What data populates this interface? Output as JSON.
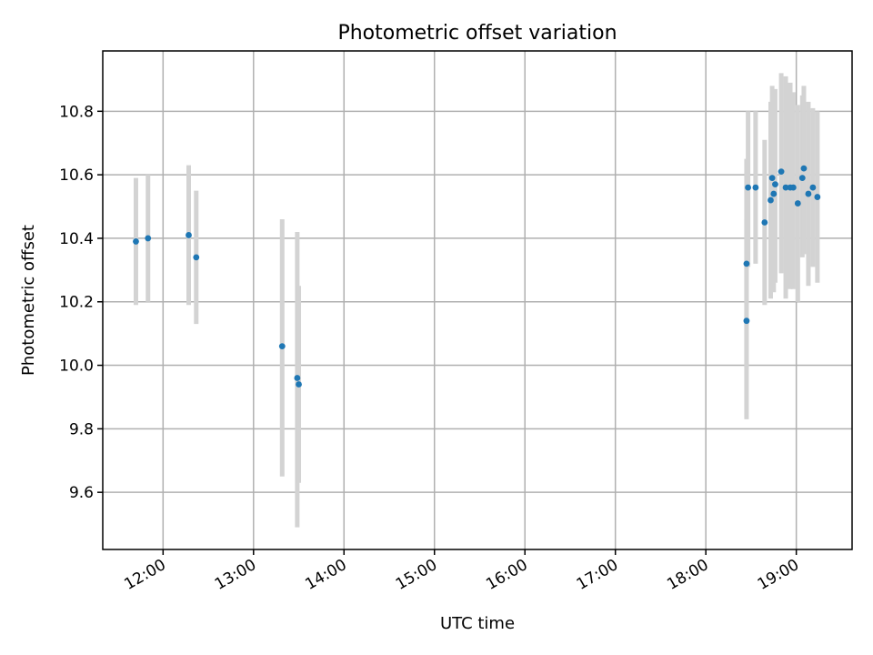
{
  "chart_data": {
    "type": "scatter",
    "title": "Photometric offset variation",
    "xlabel": "UTC time",
    "ylabel": "Photometric offset",
    "xlim": [
      "11:20",
      "19:37"
    ],
    "ylim": [
      9.42,
      10.99
    ],
    "x_ticks": [
      "12:00",
      "13:00",
      "14:00",
      "15:00",
      "16:00",
      "17:00",
      "18:00",
      "19:00"
    ],
    "y_ticks": [
      "9.6",
      "9.8",
      "10.0",
      "10.2",
      "10.4",
      "10.6",
      "10.8"
    ],
    "grid": true,
    "x_tick_rotation_deg": 30,
    "colors": {
      "points": "#1f77b4",
      "error_bars": "#d3d3d3"
    },
    "points": [
      {
        "x": "11:42",
        "y": 10.39,
        "y_low": 10.19,
        "y_high": 10.59
      },
      {
        "x": "11:50",
        "y": 10.4,
        "y_low": 10.2,
        "y_high": 10.6
      },
      {
        "x": "12:17",
        "y": 10.41,
        "y_low": 10.19,
        "y_high": 10.63
      },
      {
        "x": "12:22",
        "y": 10.34,
        "y_low": 10.13,
        "y_high": 10.55
      },
      {
        "x": "13:19",
        "y": 10.06,
        "y_low": 9.65,
        "y_high": 10.46
      },
      {
        "x": "13:29",
        "y": 9.96,
        "y_low": 9.49,
        "y_high": 10.42
      },
      {
        "x": "13:30",
        "y": 9.94,
        "y_low": 9.63,
        "y_high": 10.25
      },
      {
        "x": "18:27",
        "y": 10.14,
        "y_low": 9.83,
        "y_high": 10.46
      },
      {
        "x": "18:27",
        "y": 10.32,
        "y_low": 9.99,
        "y_high": 10.65
      },
      {
        "x": "18:28",
        "y": 10.56,
        "y_low": 10.31,
        "y_high": 10.8
      },
      {
        "x": "18:33",
        "y": 10.56,
        "y_low": 10.32,
        "y_high": 10.8
      },
      {
        "x": "18:39",
        "y": 10.45,
        "y_low": 10.19,
        "y_high": 10.71
      },
      {
        "x": "18:43",
        "y": 10.52,
        "y_low": 10.21,
        "y_high": 10.83
      },
      {
        "x": "18:44",
        "y": 10.59,
        "y_low": 10.29,
        "y_high": 10.88
      },
      {
        "x": "18:45",
        "y": 10.54,
        "y_low": 10.23,
        "y_high": 10.86
      },
      {
        "x": "18:46",
        "y": 10.57,
        "y_low": 10.26,
        "y_high": 10.87
      },
      {
        "x": "18:50",
        "y": 10.61,
        "y_low": 10.29,
        "y_high": 10.92
      },
      {
        "x": "18:53",
        "y": 10.56,
        "y_low": 10.21,
        "y_high": 10.91
      },
      {
        "x": "18:56",
        "y": 10.56,
        "y_low": 10.24,
        "y_high": 10.89
      },
      {
        "x": "18:58",
        "y": 10.56,
        "y_low": 10.24,
        "y_high": 10.86
      },
      {
        "x": "19:01",
        "y": 10.51,
        "y_low": 10.2,
        "y_high": 10.82
      },
      {
        "x": "19:04",
        "y": 10.59,
        "y_low": 10.34,
        "y_high": 10.85
      },
      {
        "x": "19:05",
        "y": 10.62,
        "y_low": 10.35,
        "y_high": 10.88
      },
      {
        "x": "19:08",
        "y": 10.54,
        "y_low": 10.25,
        "y_high": 10.83
      },
      {
        "x": "19:11",
        "y": 10.56,
        "y_low": 10.31,
        "y_high": 10.81
      },
      {
        "x": "19:14",
        "y": 10.53,
        "y_low": 10.26,
        "y_high": 10.8
      }
    ]
  }
}
